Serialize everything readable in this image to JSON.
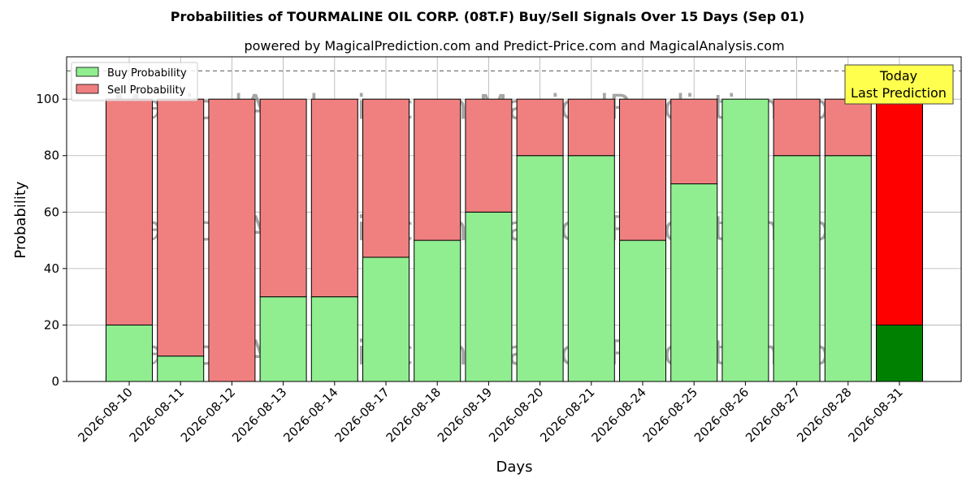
{
  "chart_data": {
    "type": "bar",
    "stacked": true,
    "title": "Probabilities of TOURMALINE OIL CORP. (08T.F) Buy/Sell Signals Over 15 Days (Sep 01)",
    "subtitle": "powered by MagicalPrediction.com and Predict-Price.com and MagicalAnalysis.com",
    "xlabel": "Days",
    "ylabel": "Probability",
    "ylim": [
      0,
      115
    ],
    "yticks": [
      0,
      20,
      40,
      60,
      80,
      100
    ],
    "grid": true,
    "legend_position": "top-left",
    "reference_line": 110,
    "categories": [
      "2026-08-10",
      "2026-08-11",
      "2026-08-12",
      "2026-08-13",
      "2026-08-14",
      "2026-08-17",
      "2026-08-18",
      "2026-08-19",
      "2026-08-20",
      "2026-08-21",
      "2026-08-24",
      "2026-08-25",
      "2026-08-26",
      "2026-08-27",
      "2026-08-28",
      "2026-08-31"
    ],
    "series": [
      {
        "name": "Buy Probability",
        "color": "#90ee90",
        "values": [
          20,
          9,
          0,
          30,
          30,
          44,
          50,
          60,
          80,
          80,
          50,
          70,
          100,
          80,
          80,
          20
        ]
      },
      {
        "name": "Sell Probability",
        "color": "#f08080",
        "values": [
          80,
          91,
          100,
          70,
          70,
          56,
          50,
          40,
          20,
          20,
          50,
          30,
          0,
          20,
          20,
          80
        ]
      }
    ],
    "highlight": {
      "index": 15,
      "buy_color": "#008000",
      "sell_color": "#ff0000"
    },
    "annotation": {
      "lines": [
        "Today",
        "Last Prediction"
      ],
      "background": "#ffff4d"
    },
    "watermark": "MagicalAnalysis.com     MagicalPrediction.com"
  }
}
